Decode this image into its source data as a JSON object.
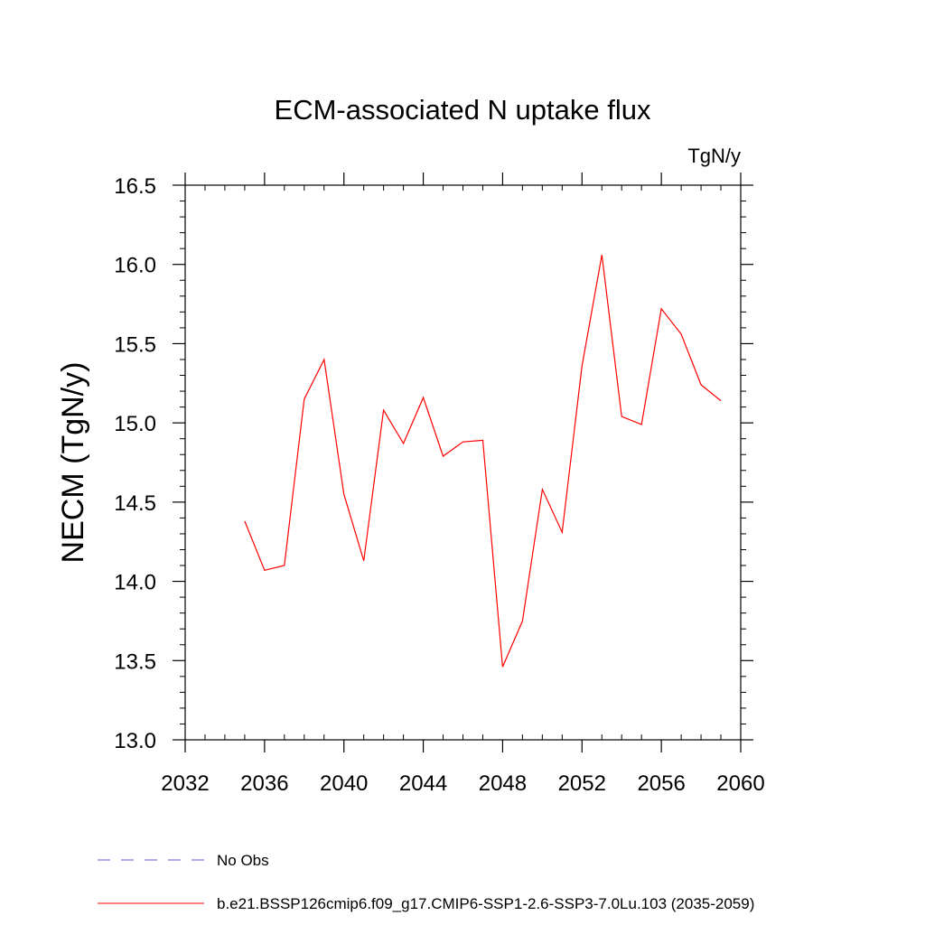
{
  "chart_data": {
    "type": "line",
    "title": "ECM-associated N uptake flux",
    "units": "TgN/y",
    "ylabel": "NECM  (TgN/y)",
    "xlabel": "",
    "xlim": [
      2032,
      2060
    ],
    "ylim": [
      13.0,
      16.5
    ],
    "x_ticks": [
      2032,
      2036,
      2040,
      2044,
      2048,
      2052,
      2056,
      2060
    ],
    "x_tick_labels": [
      "2032",
      "2036",
      "2040",
      "2044",
      "2048",
      "2052",
      "2056",
      "2060"
    ],
    "y_ticks": [
      13.0,
      13.5,
      14.0,
      14.5,
      15.0,
      15.5,
      16.0,
      16.5
    ],
    "y_tick_labels": [
      "13.0",
      "13.5",
      "14.0",
      "14.5",
      "15.0",
      "15.5",
      "16.0",
      "16.5"
    ],
    "grid": false,
    "legend_position": "bottom",
    "series": [
      {
        "name": "b.e21.BSSP126cmip6.f09_g17.CMIP6-SSP1-2.6-SSP3-7.0Lu.103 (2035-2059)",
        "color": "#ff0000",
        "style": "solid",
        "x": [
          2035,
          2036,
          2037,
          2038,
          2039,
          2040,
          2041,
          2042,
          2043,
          2044,
          2045,
          2046,
          2047,
          2048,
          2049,
          2050,
          2051,
          2052,
          2053,
          2054,
          2055,
          2056,
          2057,
          2058,
          2059
        ],
        "y": [
          14.38,
          14.07,
          14.1,
          15.15,
          15.4,
          14.55,
          14.13,
          15.08,
          14.87,
          15.16,
          14.79,
          14.88,
          14.89,
          13.46,
          13.75,
          14.58,
          14.31,
          15.36,
          16.06,
          15.04,
          14.99,
          15.72,
          15.56,
          15.24,
          15.14
        ]
      }
    ],
    "legend": [
      {
        "label": "No Obs",
        "color": "#6a5acd",
        "style": "dashed"
      },
      {
        "label": "b.e21.BSSP126cmip6.f09_g17.CMIP6-SSP1-2.6-SSP3-7.0Lu.103 (2035-2059)",
        "color": "#ff0000",
        "style": "solid"
      }
    ]
  }
}
